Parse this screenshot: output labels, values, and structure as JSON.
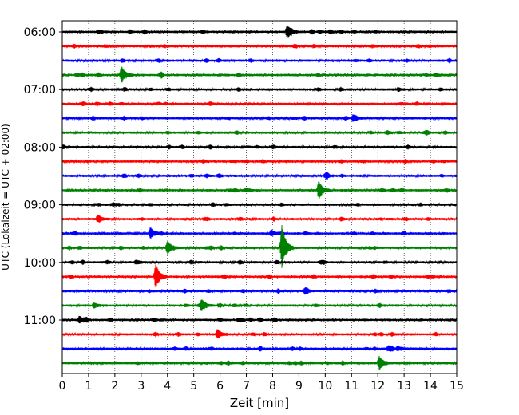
{
  "chart_data": {
    "type": "line",
    "title": "",
    "xlabel": "Zeit  [min]",
    "ylabel": "UTC (Lokalzeit = UTC + 02:00)",
    "xlim": [
      0,
      15
    ],
    "x_ticks": [
      "0",
      "1",
      "2",
      "3",
      "4",
      "5",
      "6",
      "7",
      "8",
      "9",
      "10",
      "11",
      "12",
      "13",
      "14",
      "15"
    ],
    "y_tick_labels": [
      "06:00",
      "07:00",
      "08:00",
      "09:00",
      "10:00",
      "11:00"
    ],
    "trace_start_times": [
      "06:00",
      "06:15",
      "06:30",
      "06:45",
      "07:00",
      "07:15",
      "07:30",
      "07:45",
      "08:00",
      "08:15",
      "08:30",
      "08:45",
      "09:00",
      "09:15",
      "09:30",
      "09:45",
      "10:00",
      "10:15",
      "10:30",
      "10:45",
      "11:00",
      "11:15",
      "11:30",
      "11:45"
    ],
    "trace_colors": [
      "#000000",
      "#ff0000",
      "#0000ff",
      "#008000"
    ],
    "grid": "vertical dotted at each minute",
    "events": [
      {
        "trace": 0,
        "minute": 8.55,
        "amplitude": 2.2
      },
      {
        "trace": 0,
        "minute": 1.35,
        "amplitude": 0.7
      },
      {
        "trace": 0,
        "minute": 5.3,
        "amplitude": 0.6
      },
      {
        "trace": 3,
        "minute": 2.25,
        "amplitude": 3.2
      },
      {
        "trace": 6,
        "minute": 11.05,
        "amplitude": 1.2
      },
      {
        "trace": 10,
        "minute": 10.0,
        "amplitude": 0.7
      },
      {
        "trace": 11,
        "minute": 9.75,
        "amplitude": 3.3
      },
      {
        "trace": 13,
        "minute": 1.35,
        "amplitude": 1.5
      },
      {
        "trace": 14,
        "minute": 3.35,
        "amplitude": 2.1
      },
      {
        "trace": 14,
        "minute": 7.95,
        "amplitude": 1.3
      },
      {
        "trace": 15,
        "minute": 4.0,
        "amplitude": 2.6
      },
      {
        "trace": 15,
        "minute": 8.35,
        "amplitude": 8.5
      },
      {
        "trace": 16,
        "minute": 2.8,
        "amplitude": 0.8
      },
      {
        "trace": 17,
        "minute": 3.55,
        "amplitude": 4.2
      },
      {
        "trace": 18,
        "minute": 9.25,
        "amplitude": 0.8
      },
      {
        "trace": 19,
        "minute": 1.2,
        "amplitude": 1.0
      },
      {
        "trace": 19,
        "minute": 5.3,
        "amplitude": 1.8
      },
      {
        "trace": 20,
        "minute": 0.65,
        "amplitude": 1.3
      },
      {
        "trace": 21,
        "minute": 5.9,
        "amplitude": 1.9
      },
      {
        "trace": 22,
        "minute": 12.4,
        "amplitude": 1.0
      },
      {
        "trace": 22,
        "minute": 12.75,
        "amplitude": 0.8
      },
      {
        "trace": 23,
        "minute": 12.05,
        "amplitude": 2.6
      }
    ]
  }
}
